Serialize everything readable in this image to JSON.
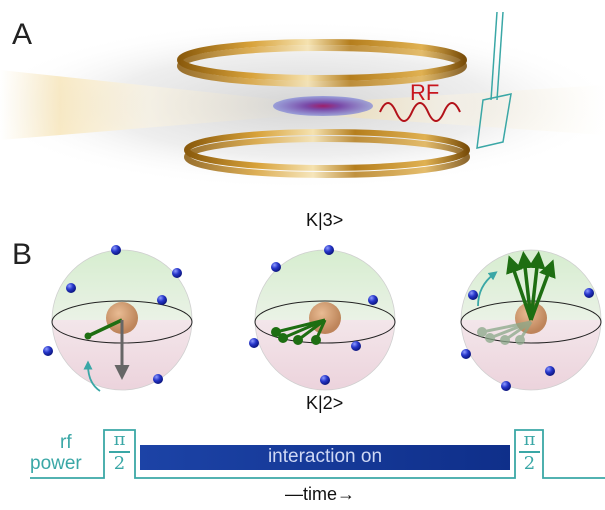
{
  "panels": {
    "a": "A",
    "b": "B"
  },
  "panel_a": {
    "rf_label": "RF"
  },
  "panel_b": {
    "state_top": "K|3>",
    "state_bottom": "K|2>"
  },
  "pulse_sequence": {
    "rf_label": "rf",
    "power_label": "power",
    "pulse_numerator": "π",
    "pulse_denominator": "2",
    "interaction_label": "interaction on",
    "time_label": "—time→"
  },
  "colors": {
    "ring": "#b07f1c",
    "rf_wave": "#b3121a",
    "teal": "#3aa7a6",
    "interaction_bar": "#1a3f9e",
    "atom": "#1f2db0",
    "spin_vector": "#1e6e12"
  }
}
